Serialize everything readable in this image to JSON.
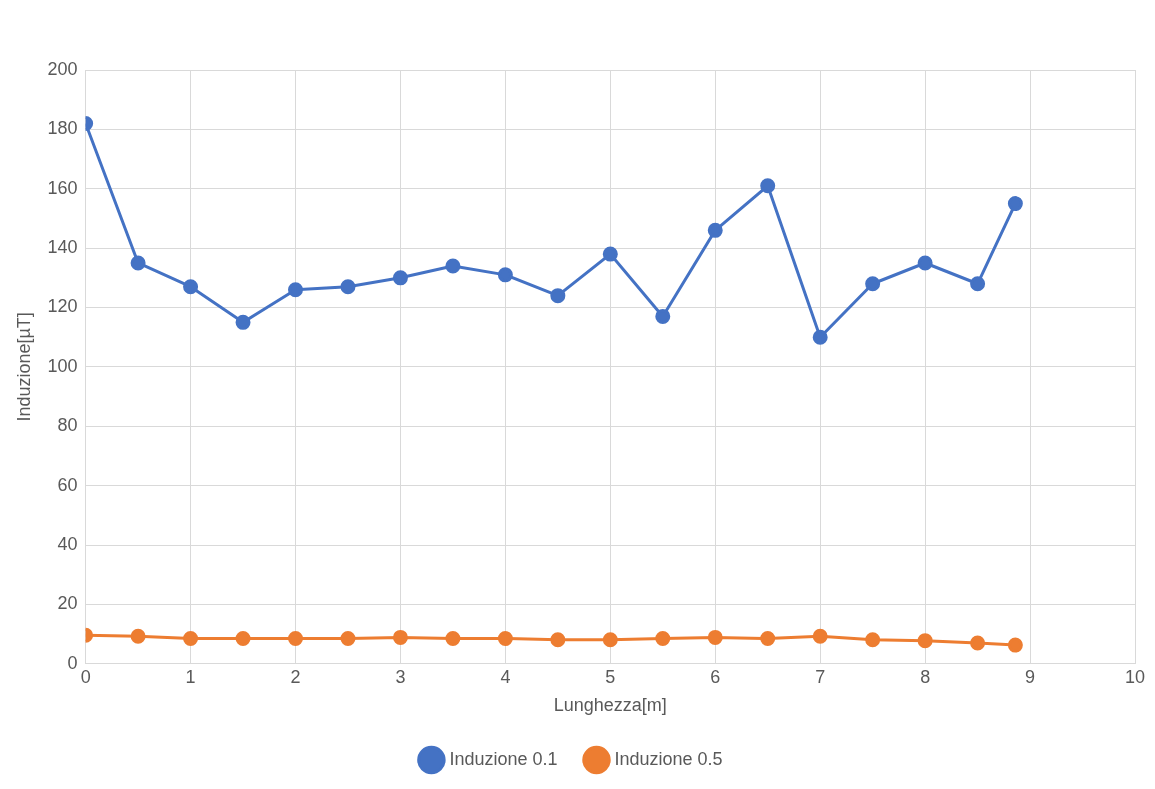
{
  "chart_data": {
    "type": "line",
    "xlabel": "Lunghezza[m]",
    "ylabel": "Induzione[µT]",
    "xlim": [
      0,
      10
    ],
    "xticks": [
      0,
      1,
      2,
      3,
      4,
      5,
      6,
      7,
      8,
      9,
      10
    ],
    "ylim": [
      0,
      200
    ],
    "yticks": [
      0,
      20,
      40,
      60,
      80,
      100,
      120,
      140,
      160,
      180,
      200
    ],
    "grid": true,
    "legend": "bottom",
    "marker": "circle",
    "line_style": "solid",
    "x": [
      0,
      0.5,
      1,
      1.5,
      2,
      2.5,
      3,
      3.5,
      4,
      4.5,
      5,
      5.5,
      6,
      6.5,
      7,
      7.5,
      8,
      8.5,
      8.86
    ],
    "series": [
      {
        "name": "Induzione 0.1",
        "color": "#4472c4",
        "values": [
          182,
          135,
          127,
          115,
          126,
          127,
          130,
          134,
          131,
          124,
          138,
          117,
          146,
          161,
          110,
          128,
          135,
          128,
          155
        ]
      },
      {
        "name": "Induzione 0.5",
        "color": "#ed7d31",
        "values": [
          9.6,
          9.3,
          8.5,
          8.5,
          8.5,
          8.5,
          8.9,
          8.5,
          8.5,
          8.1,
          8.1,
          8.5,
          8.9,
          8.5,
          9.3,
          8.1,
          7.8,
          7,
          6.3
        ]
      }
    ]
  }
}
